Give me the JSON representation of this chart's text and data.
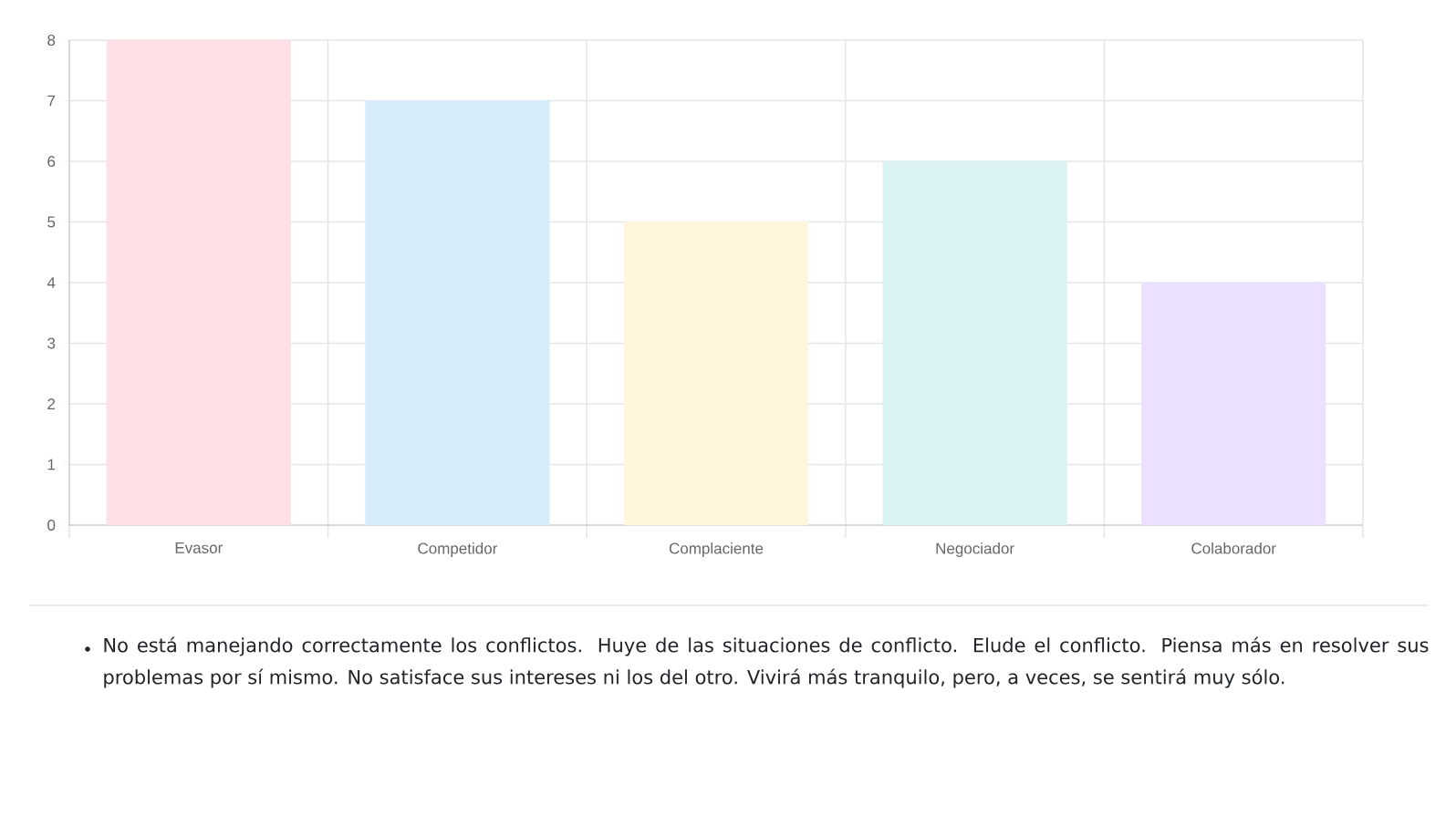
{
  "chart_data": {
    "type": "bar",
    "categories": [
      "Evasor",
      "Competidor",
      "Complaciente",
      "Negociador",
      "Colaborador"
    ],
    "values": [
      8,
      7,
      5,
      6,
      4
    ],
    "colors": [
      "#ffe0e6",
      "#d7ecfb",
      "#fff5dd",
      "#dbf2f2",
      "#ebe0ff"
    ],
    "ylim": [
      0,
      8
    ],
    "yticks": [
      0,
      1,
      2,
      3,
      4,
      5,
      6,
      7,
      8
    ],
    "grid": true,
    "annotations": [
      "No está manejando correctamente los conflictos. Huye de las situaciones de conflicto. Elude el conflicto. Piensa más en resolver sus problemas por sí mismo. No satisface sus intereses ni los del otro. Vivirá más tranquilo, pero, a veces, se sentirá muy sólo."
    ]
  }
}
